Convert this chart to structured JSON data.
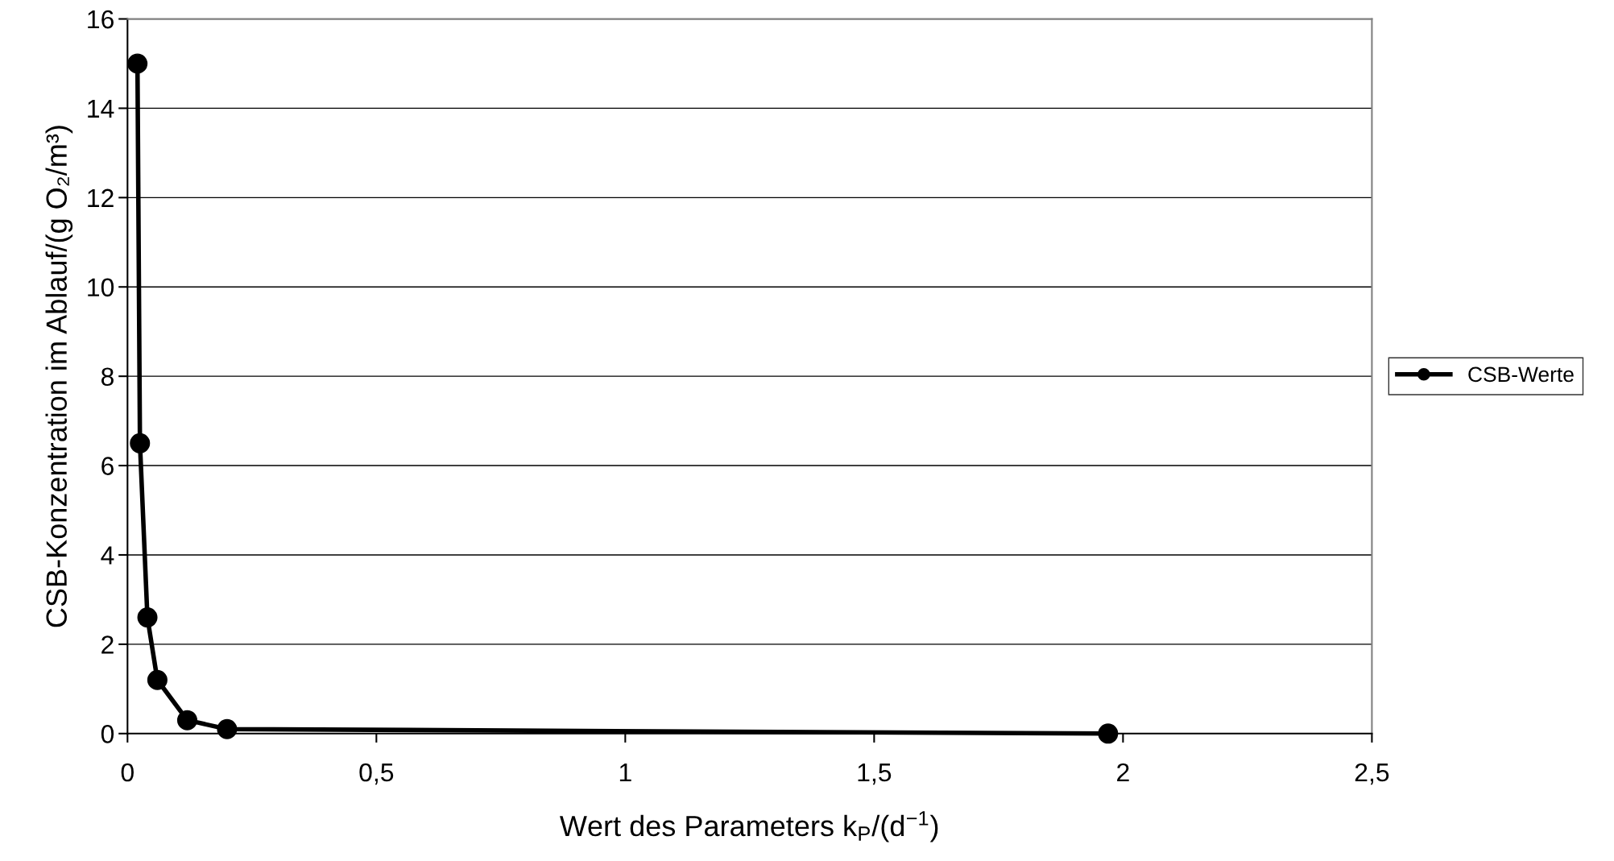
{
  "chart_data": {
    "type": "line",
    "xlabel": "Wert des Parameters k$_{P}$/(d$^{−1}$)",
    "ylabel": "CSB-Konzentration im Ablauf/(g O₂/m³)",
    "x": [
      0.02,
      0.025,
      0.04,
      0.06,
      0.12,
      0.2,
      1.97
    ],
    "series": [
      {
        "name": "CSB-Werte",
        "color": "#000000",
        "values": [
          15.0,
          6.5,
          2.6,
          1.2,
          0.3,
          0.1,
          0.0
        ]
      }
    ],
    "xlim": [
      0,
      2.5
    ],
    "xticks": [
      0,
      {
        "value": 0.5,
        "label": "0,5"
      },
      1,
      {
        "value": 1.5,
        "label": "1,5"
      },
      2,
      {
        "value": 2.5,
        "label": "2,5"
      }
    ],
    "ylim": [
      0,
      16
    ],
    "yticks": [
      0,
      2,
      4,
      6,
      8,
      10,
      12,
      14,
      16
    ],
    "grid": "y",
    "legend": "right",
    "marker": "circle",
    "line_style": "solid"
  }
}
